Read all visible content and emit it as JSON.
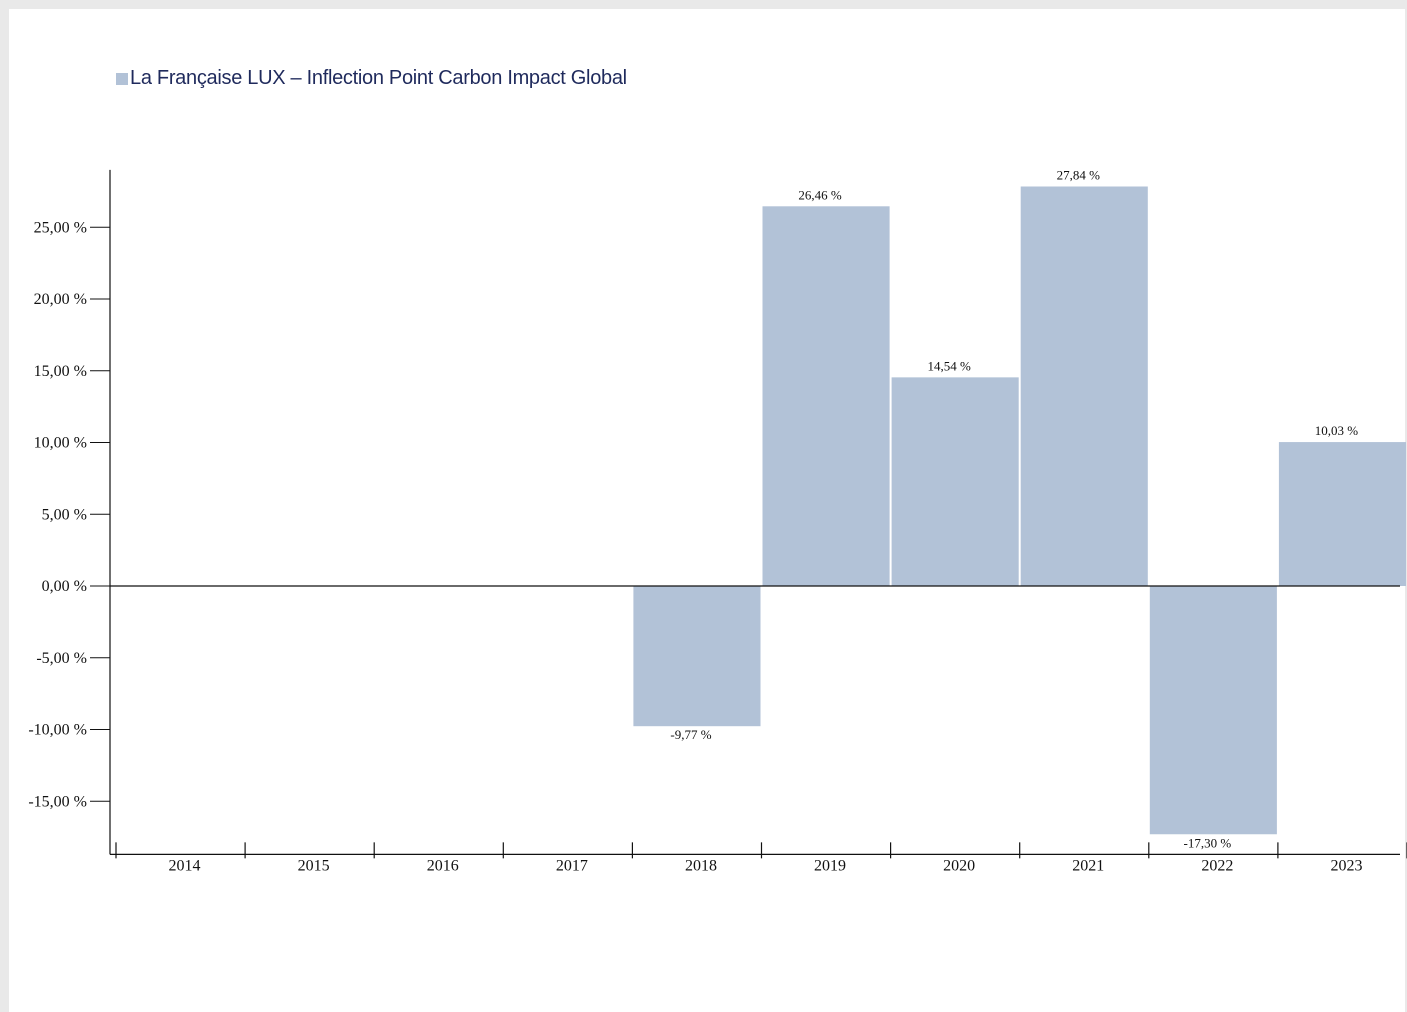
{
  "chart_data": {
    "type": "bar",
    "legend": [
      {
        "name": "La Française LUX – Inflection Point Carbon Impact Global",
        "color": "#b2c2d7"
      }
    ],
    "legend_position": "top-left",
    "categories": [
      "2014",
      "2015",
      "2016",
      "2017",
      "2018",
      "2019",
      "2020",
      "2021",
      "2022",
      "2023"
    ],
    "series": [
      {
        "name": "La Française LUX – Inflection Point Carbon Impact Global",
        "values": [
          null,
          null,
          null,
          null,
          -9.77,
          26.46,
          14.54,
          27.84,
          -17.3,
          10.03
        ],
        "value_labels": [
          "",
          "",
          "",
          "",
          "-9,77 %",
          "26,46 %",
          "14,54 %",
          "27,84 %",
          "-17,30 %",
          "10,03 %"
        ]
      }
    ],
    "y_ticks": [
      25,
      20,
      15,
      10,
      5,
      0,
      -5,
      -10,
      -15
    ],
    "y_tick_labels": [
      "25,00 %",
      "20,00 %",
      "15,00 %",
      "10,00 %",
      "5,00 %",
      "0,00 %",
      "-5,00 %",
      "-10,00 %",
      "-15,00 %"
    ],
    "ylim": [
      -18.7,
      29.0
    ],
    "grid": false,
    "bar_color": "#b2c2d7"
  }
}
